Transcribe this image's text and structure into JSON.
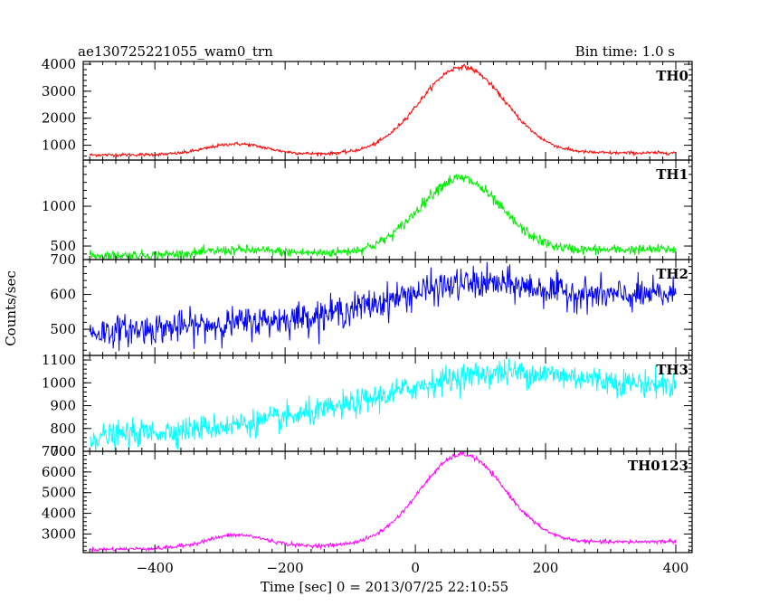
{
  "header": {
    "title": "ae130725221055_wam0_trn",
    "bin_label": "Bin time: 1.0 s"
  },
  "chart_data": {
    "type": "line",
    "xlabel": "Time [sec] 0 = 2013/07/25 22:10:55",
    "ylabel": "Counts/sec",
    "xlim": [
      -510,
      425
    ],
    "x_ticks": [
      -400,
      -200,
      0,
      200,
      400
    ],
    "x_tick_labels": [
      "−400",
      "−200",
      "0",
      "200",
      "400"
    ],
    "x_step": 1,
    "panels": [
      {
        "name": "TH0",
        "color": "#ff0000",
        "ylim": [
          450,
          4100
        ],
        "y_ticks": [
          1000,
          2000,
          3000,
          4000
        ],
        "y_tick_labels": [
          "1000",
          "2000",
          "3000",
          "4000"
        ],
        "approx_profile": {
          "baseline_start": 640,
          "baseline_end": 720,
          "bumps": [
            {
              "center": -275,
              "peak": 1050,
              "width": 45
            },
            {
              "center": 72,
              "peak": 3900,
              "width": 65
            }
          ],
          "noise": 30
        }
      },
      {
        "name": "TH1",
        "color": "#00ee00",
        "ylim": [
          330,
          1580
        ],
        "y_ticks": [
          500,
          1000
        ],
        "y_tick_labels": [
          "500",
          "1000"
        ],
        "approx_profile": {
          "baseline_start": 380,
          "baseline_end": 460,
          "bumps": [
            {
              "center": -270,
              "peak": 450,
              "width": 50
            },
            {
              "center": 68,
              "peak": 1350,
              "width": 62
            }
          ],
          "noise": 30
        }
      },
      {
        "name": "TH2",
        "color": "#0000ff",
        "ylim": [
          425,
          700
        ],
        "y_ticks": [
          500,
          600,
          700
        ],
        "y_tick_labels": [
          "500",
          "600",
          "700"
        ],
        "approx_profile": {
          "baseline_start": 490,
          "baseline_end": 600,
          "bumps": [
            {
              "center": 80,
              "peak": 630,
              "width": 110
            }
          ],
          "noise": 22
        }
      },
      {
        "name": "TH3",
        "color": "#00ffff",
        "ylim": [
          700,
          1120
        ],
        "y_ticks": [
          800,
          900,
          1000,
          1100
        ],
        "y_tick_labels": [
          "800",
          "900",
          "1000",
          "1100"
        ],
        "y_extra_bottom_label": "700",
        "approx_profile": {
          "baseline_start": 760,
          "baseline_end": 970,
          "bumps": [
            {
              "center": 110,
              "peak": 1040,
              "width": 150
            }
          ],
          "noise": 28
        }
      },
      {
        "name": "TH0123",
        "color": "#ff00ff",
        "ylim": [
          2100,
          7000
        ],
        "y_ticks": [
          3000,
          4000,
          5000,
          6000,
          7000
        ],
        "y_tick_labels": [
          "3000",
          "4000",
          "5000",
          "6000",
          "7000"
        ],
        "approx_profile": {
          "baseline_start": 2250,
          "baseline_end": 2650,
          "bumps": [
            {
              "center": -275,
              "peak": 2950,
              "width": 45
            },
            {
              "center": 72,
              "peak": 6850,
              "width": 65
            }
          ],
          "noise": 45
        }
      }
    ]
  }
}
